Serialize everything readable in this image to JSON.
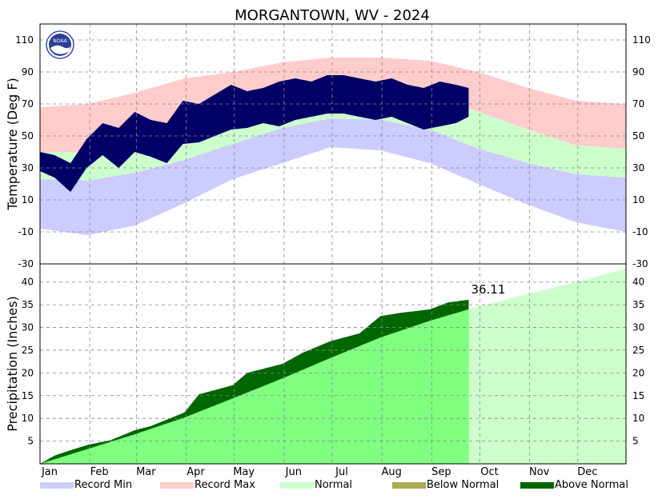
{
  "title": "MORGANTOWN, WV - 2024",
  "colors": {
    "record_min": "#ccccff",
    "record_max": "#ffcccc",
    "normal": "#ccffcc",
    "below_normal": "#aaaa55",
    "above_normal": "#006600",
    "observed_temp": "#000066",
    "normal_precip_to_date": "#80ff80",
    "grid": "#888888"
  },
  "icons": {
    "logo": "noaa-logo-icon"
  },
  "logo_text": "NOAA",
  "legend": [
    {
      "label": "Record Min",
      "color": "#ccccff"
    },
    {
      "label": "Record Max",
      "color": "#ffcccc"
    },
    {
      "label": "Normal",
      "color": "#ccffcc"
    },
    {
      "label": "Below Normal",
      "color": "#aaaa55"
    },
    {
      "label": "Above Normal",
      "color": "#006600"
    }
  ],
  "chart_data": [
    {
      "type": "area",
      "panel": "temperature",
      "ylabel": "Temperature (Deg F)",
      "ylim": [
        -30,
        120
      ],
      "yticks": [
        -30,
        -10,
        10,
        30,
        50,
        70,
        90,
        110
      ],
      "grid": true,
      "x_unit": "day of year",
      "xlim": [
        1,
        366
      ],
      "months": [
        "Jan",
        "Feb",
        "Mar",
        "Apr",
        "May",
        "Jun",
        "Jul",
        "Aug",
        "Sep",
        "Oct",
        "Nov",
        "Dec"
      ],
      "observed_through_day": 268,
      "series": [
        {
          "name": "Record Max",
          "x": [
            1,
            31,
            60,
            91,
            121,
            152,
            182,
            213,
            244,
            274,
            305,
            335,
            366
          ],
          "values": [
            68,
            70,
            77,
            86,
            90,
            96,
            99,
            99,
            97,
            90,
            80,
            72,
            70
          ]
        },
        {
          "name": "Normal",
          "x": [
            1,
            31,
            60,
            91,
            121,
            152,
            182,
            213,
            244,
            274,
            305,
            335,
            366
          ],
          "values": [
            40,
            40,
            47,
            57,
            69,
            78,
            83,
            82,
            76,
            65,
            54,
            44,
            42
          ]
        },
        {
          "name": "Normal",
          "x": [
            1,
            31,
            60,
            91,
            121,
            152,
            182,
            213,
            244,
            274,
            305,
            335,
            366
          ],
          "values": [
            23,
            22,
            27,
            35,
            45,
            55,
            61,
            60,
            54,
            42,
            33,
            26,
            24
          ]
        },
        {
          "name": "Record Min",
          "x": [
            1,
            31,
            60,
            91,
            121,
            152,
            182,
            213,
            244,
            274,
            305,
            335,
            366
          ],
          "values": [
            -8,
            -12,
            -6,
            8,
            23,
            33,
            43,
            41,
            33,
            20,
            7,
            -4,
            -10
          ]
        },
        {
          "name": "observed high",
          "x": [
            1,
            10,
            20,
            30,
            40,
            50,
            60,
            70,
            80,
            90,
            100,
            110,
            120,
            130,
            140,
            150,
            160,
            170,
            180,
            190,
            200,
            210,
            220,
            230,
            240,
            250,
            260,
            268
          ],
          "values": [
            40,
            38,
            33,
            48,
            58,
            55,
            65,
            60,
            58,
            72,
            70,
            76,
            82,
            78,
            80,
            84,
            86,
            84,
            88,
            88,
            86,
            84,
            86,
            82,
            80,
            84,
            82,
            80
          ]
        },
        {
          "name": "observed low",
          "x": [
            1,
            10,
            20,
            30,
            40,
            50,
            60,
            70,
            80,
            90,
            100,
            110,
            120,
            130,
            140,
            150,
            160,
            170,
            180,
            190,
            200,
            210,
            220,
            230,
            240,
            250,
            260,
            268
          ],
          "values": [
            28,
            24,
            15,
            30,
            38,
            30,
            40,
            37,
            33,
            45,
            46,
            50,
            54,
            55,
            58,
            56,
            60,
            62,
            64,
            64,
            62,
            60,
            62,
            58,
            54,
            56,
            58,
            62
          ]
        }
      ]
    },
    {
      "type": "area",
      "panel": "precipitation",
      "ylabel": "Precipitation (Inches)",
      "ylim": [
        0,
        44
      ],
      "yticks": [
        5,
        10,
        15,
        20,
        25,
        30,
        35,
        40
      ],
      "grid": true,
      "x_unit": "day of year",
      "xlim": [
        1,
        366
      ],
      "observed_through_day": 268,
      "annotation": "36.11",
      "series": [
        {
          "name": "Normal",
          "x": [
            1,
            31,
            60,
            91,
            121,
            152,
            182,
            213,
            244,
            268,
            274,
            305,
            335,
            366
          ],
          "values": [
            0,
            3.3,
            6.5,
            10.2,
            14.4,
            18.8,
            23.3,
            27.8,
            31.5,
            34.0,
            34.6,
            37.4,
            40.0,
            43.0
          ]
        },
        {
          "name": "Above Normal",
          "x": [
            1,
            10,
            20,
            31,
            45,
            60,
            70,
            91,
            100,
            121,
            130,
            152,
            165,
            182,
            200,
            213,
            225,
            244,
            255,
            268
          ],
          "values": [
            0,
            1.8,
            3.0,
            4.2,
            5.2,
            7.4,
            8.3,
            11.3,
            15.3,
            17.3,
            20.0,
            22.0,
            24.5,
            27.0,
            28.7,
            32.5,
            33.2,
            34.0,
            35.5,
            36.11
          ]
        }
      ]
    }
  ]
}
